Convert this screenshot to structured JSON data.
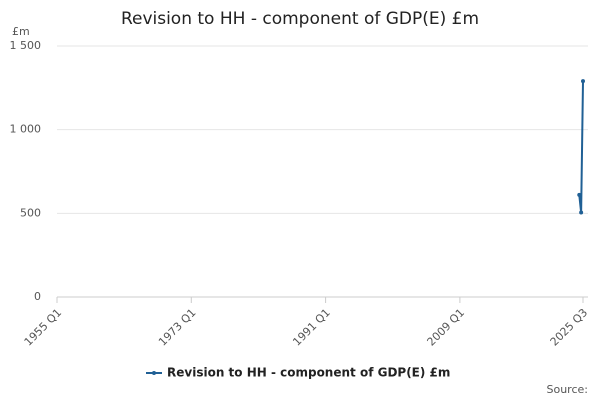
{
  "chart_data": {
    "type": "line",
    "title": "Revision to HH - component of GDP(E) £m",
    "y_label": "£m",
    "source": "Source:",
    "categories": [
      "1955 Q1",
      null,
      null,
      null,
      null,
      null,
      null,
      null,
      null,
      null,
      null,
      null,
      null,
      null,
      null,
      null,
      null,
      null,
      null,
      null,
      null,
      null,
      null,
      null,
      null,
      null,
      null,
      null,
      null,
      null,
      null,
      null,
      null,
      null,
      null,
      null,
      null,
      null,
      null,
      null,
      null,
      null,
      null,
      null,
      null,
      null,
      null,
      null,
      null,
      null,
      null,
      null,
      null,
      null,
      null,
      null,
      null,
      null,
      null,
      null,
      null,
      null,
      null,
      null,
      null,
      null,
      null,
      null,
      null,
      null,
      null,
      null,
      "1973 Q1",
      null,
      null,
      null,
      null,
      null,
      null,
      null,
      null,
      null,
      null,
      null,
      null,
      null,
      null,
      null,
      null,
      null,
      null,
      null,
      null,
      null,
      null,
      null,
      null,
      null,
      null,
      null,
      null,
      null,
      null,
      null,
      null,
      null,
      null,
      null,
      null,
      null,
      null,
      null,
      null,
      null,
      null,
      null,
      null,
      null,
      null,
      null,
      null,
      null,
      null,
      null,
      null,
      null,
      null,
      null,
      null,
      null,
      null,
      null,
      null,
      null,
      null,
      null,
      null,
      null,
      null,
      null,
      null,
      null,
      null,
      null,
      "1991 Q1",
      null,
      null,
      null,
      null,
      null,
      null,
      null,
      null,
      null,
      null,
      null,
      null,
      null,
      null,
      null,
      null,
      null,
      null,
      null,
      null,
      null,
      null,
      null,
      null,
      null,
      null,
      null,
      null,
      null,
      null,
      null,
      null,
      null,
      null,
      null,
      null,
      null,
      null,
      null,
      null,
      null,
      null,
      null,
      null,
      null,
      null,
      null,
      null,
      null,
      null,
      null,
      null,
      null,
      null,
      null,
      null,
      null,
      null,
      null,
      null,
      null,
      null,
      null,
      null,
      null,
      null,
      null,
      null,
      null,
      null,
      null,
      "2009 Q1",
      null,
      null,
      null,
      null,
      null,
      null,
      null,
      null,
      null,
      null,
      null,
      null,
      null,
      null,
      null,
      null,
      null,
      null,
      null,
      null,
      null,
      null,
      null,
      null,
      null,
      null,
      null,
      null,
      null,
      null,
      null,
      null,
      null,
      null,
      null,
      null,
      null,
      null,
      null,
      null,
      null,
      null,
      null,
      null,
      null,
      null,
      null,
      null,
      null,
      null,
      null,
      null,
      null,
      null,
      null,
      null,
      null,
      null,
      null,
      null,
      null,
      null,
      null,
      null,
      null,
      "2025 Q3"
    ],
    "series": [
      {
        "name": "Revision to HH - component of GDP(E) £m",
        "color": "#206095",
        "values": [
          null,
          null,
          null,
          null,
          null,
          null,
          null,
          null,
          null,
          null,
          null,
          null,
          null,
          null,
          null,
          null,
          null,
          null,
          null,
          null,
          null,
          null,
          null,
          null,
          null,
          null,
          null,
          null,
          null,
          null,
          null,
          null,
          null,
          null,
          null,
          null,
          null,
          null,
          null,
          null,
          null,
          null,
          null,
          null,
          null,
          null,
          null,
          null,
          null,
          null,
          null,
          null,
          null,
          null,
          null,
          null,
          null,
          null,
          null,
          null,
          null,
          null,
          null,
          null,
          null,
          null,
          null,
          null,
          null,
          null,
          null,
          null,
          null,
          null,
          null,
          null,
          null,
          null,
          null,
          null,
          null,
          null,
          null,
          null,
          null,
          null,
          null,
          null,
          null,
          null,
          null,
          null,
          null,
          null,
          null,
          null,
          null,
          null,
          null,
          null,
          null,
          null,
          null,
          null,
          null,
          null,
          null,
          null,
          null,
          null,
          null,
          null,
          null,
          null,
          null,
          null,
          null,
          null,
          null,
          null,
          null,
          null,
          null,
          null,
          null,
          null,
          null,
          null,
          null,
          null,
          null,
          null,
          null,
          null,
          null,
          null,
          null,
          null,
          null,
          null,
          null,
          null,
          null,
          null,
          null,
          null,
          null,
          null,
          null,
          null,
          null,
          null,
          null,
          null,
          null,
          null,
          null,
          null,
          null,
          null,
          null,
          null,
          null,
          null,
          null,
          null,
          null,
          null,
          null,
          null,
          null,
          null,
          null,
          null,
          null,
          null,
          null,
          null,
          null,
          null,
          null,
          null,
          null,
          null,
          null,
          null,
          null,
          null,
          null,
          null,
          null,
          null,
          null,
          null,
          null,
          null,
          null,
          null,
          null,
          null,
          null,
          null,
          null,
          null,
          null,
          null,
          null,
          null,
          null,
          null,
          null,
          null,
          null,
          null,
          null,
          null,
          null,
          null,
          null,
          null,
          null,
          null,
          null,
          null,
          null,
          null,
          null,
          null,
          null,
          null,
          null,
          null,
          null,
          null,
          null,
          null,
          null,
          null,
          null,
          null,
          null,
          null,
          null,
          null,
          null,
          null,
          null,
          null,
          null,
          null,
          null,
          null,
          null,
          null,
          null,
          null,
          null,
          null,
          null,
          null,
          null,
          null,
          null,
          null,
          null,
          null,
          null,
          null,
          null,
          null,
          null,
          null,
          null,
          null,
          null,
          null,
          null,
          null,
          null,
          null,
          610,
          505,
          1290
        ]
      }
    ],
    "ylim": [
      0,
      1500
    ],
    "yticks": [
      0,
      500,
      {
        "value": 1000,
        "label": "1 000"
      },
      {
        "value": 1500,
        "label": "1 500"
      }
    ],
    "grid": true
  }
}
